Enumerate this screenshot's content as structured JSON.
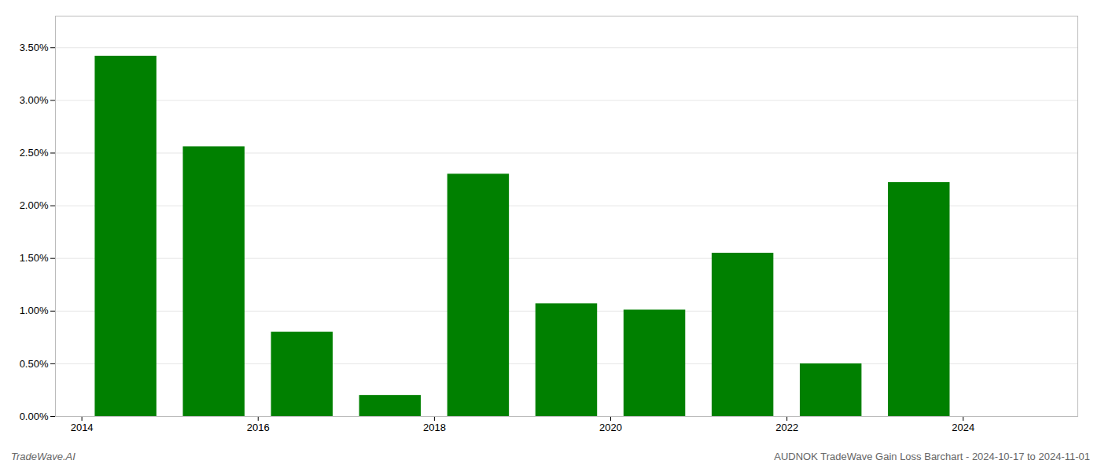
{
  "chart_data": {
    "type": "bar",
    "x": [
      2014,
      2015,
      2016,
      2017,
      2018,
      2019,
      2020,
      2021,
      2022,
      2023
    ],
    "values": [
      0.0342,
      0.0256,
      0.008,
      0.002,
      0.023,
      0.0107,
      0.0101,
      0.0155,
      0.005,
      0.0222
    ],
    "color": "#008000",
    "xlim": [
      2013.2,
      2024.8
    ],
    "xticks": [
      {
        "value": 2013.5,
        "label": "2014"
      },
      {
        "value": 2015.5,
        "label": "2016"
      },
      {
        "value": 2017.5,
        "label": "2018"
      },
      {
        "value": 2019.5,
        "label": "2020"
      },
      {
        "value": 2021.5,
        "label": "2022"
      },
      {
        "value": 2023.5,
        "label": "2024"
      }
    ],
    "ylim": [
      0,
      0.038
    ],
    "yticks": [
      {
        "value": 0.0,
        "label": "0.00%"
      },
      {
        "value": 0.005,
        "label": "0.50%"
      },
      {
        "value": 0.01,
        "label": "1.00%"
      },
      {
        "value": 0.015,
        "label": "1.50%"
      },
      {
        "value": 0.02,
        "label": "2.00%"
      },
      {
        "value": 0.025,
        "label": "2.50%"
      },
      {
        "value": 0.03,
        "label": "3.00%"
      },
      {
        "value": 0.035,
        "label": "3.50%"
      }
    ],
    "grid": true,
    "annotations": [
      "TradeWave.AI",
      "AUDNOK TradeWave Gain Loss Barchart - 2024-10-17 to 2024-11-01"
    ]
  }
}
